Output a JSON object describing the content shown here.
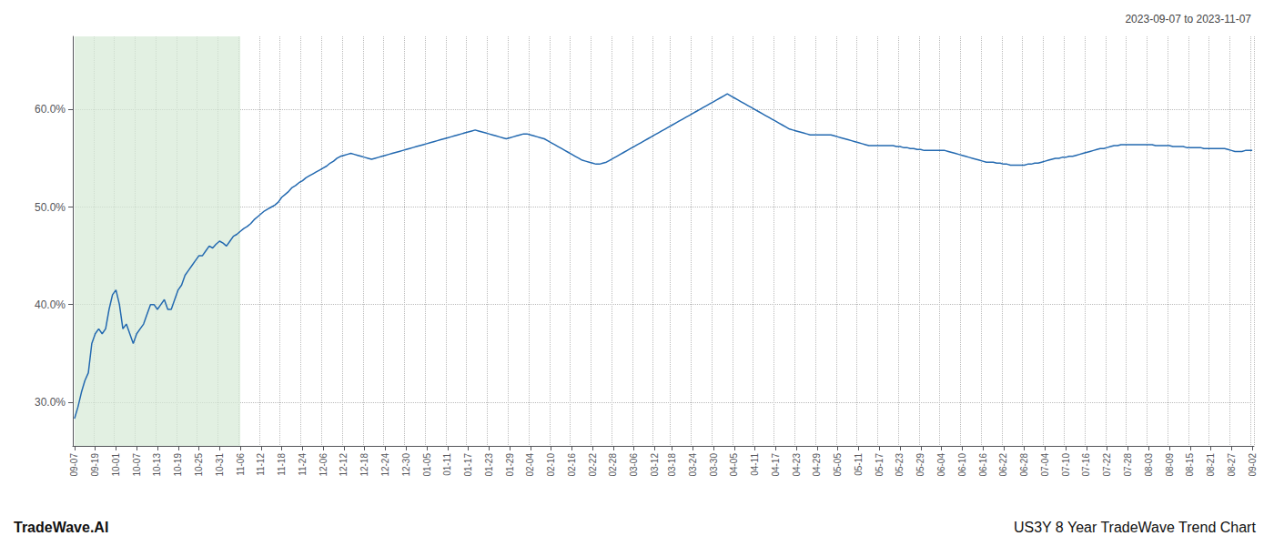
{
  "chart_data": {
    "type": "line",
    "title": "US3Y 8 Year TradeWave Trend Chart",
    "subtitle": "2023-09-07 to 2023-11-07",
    "annotations": [
      "TradeWave.AI"
    ],
    "color": "#2369b0",
    "grid": true,
    "highlight": {
      "from": "09-07",
      "to": "11-06",
      "color": "#d6ead6"
    },
    "ylim": [
      0.255,
      0.675
    ],
    "yticks": [
      {
        "value": 0.3,
        "label": "30.0%"
      },
      {
        "value": 0.4,
        "label": "40.0%"
      },
      {
        "value": 0.5,
        "label": "50.0%"
      },
      {
        "value": 0.6,
        "label": "60.0%"
      }
    ],
    "categories": [
      "09-07",
      null,
      null,
      null,
      null,
      null,
      "09-19",
      null,
      null,
      null,
      null,
      null,
      "10-01",
      null,
      null,
      null,
      null,
      null,
      "10-07",
      null,
      null,
      null,
      null,
      null,
      "10-13",
      null,
      null,
      null,
      null,
      null,
      "10-19",
      null,
      null,
      null,
      null,
      null,
      "10-25",
      null,
      null,
      null,
      null,
      null,
      "10-31",
      null,
      null,
      null,
      null,
      null,
      "11-06",
      null,
      null,
      null,
      null,
      null,
      "11-12",
      null,
      null,
      null,
      null,
      null,
      "11-18",
      null,
      null,
      null,
      null,
      null,
      "11-24",
      null,
      null,
      null,
      null,
      null,
      "12-06",
      null,
      null,
      null,
      null,
      null,
      "12-12",
      null,
      null,
      null,
      null,
      null,
      "12-18",
      null,
      null,
      null,
      null,
      null,
      "12-24",
      null,
      null,
      null,
      null,
      null,
      "12-30",
      null,
      null,
      null,
      null,
      null,
      "01-05",
      null,
      null,
      null,
      null,
      null,
      "01-11",
      null,
      null,
      null,
      null,
      null,
      "01-17",
      null,
      null,
      null,
      null,
      null,
      "01-23",
      null,
      null,
      null,
      null,
      null,
      "01-29",
      null,
      null,
      null,
      null,
      null,
      "02-04",
      null,
      null,
      null,
      null,
      null,
      "02-10",
      null,
      null,
      null,
      null,
      null,
      "02-16",
      null,
      null,
      null,
      null,
      null,
      "02-22",
      null,
      null,
      null,
      null,
      null,
      "02-28",
      null,
      null,
      null,
      null,
      null,
      "03-06",
      null,
      null,
      null,
      null,
      null,
      "03-12",
      null,
      null,
      null,
      null,
      "03-18",
      null,
      null,
      null,
      null,
      null,
      "03-24",
      null,
      null,
      null,
      null,
      null,
      "03-30",
      null,
      null,
      null,
      null,
      null,
      "04-05",
      null,
      null,
      null,
      null,
      null,
      "04-11",
      null,
      null,
      null,
      null,
      null,
      "04-17",
      null,
      null,
      null,
      null,
      null,
      "04-23",
      null,
      null,
      null,
      null,
      null,
      "04-29",
      null,
      null,
      null,
      null,
      null,
      "05-05",
      null,
      null,
      null,
      null,
      null,
      "05-11",
      null,
      null,
      null,
      null,
      null,
      "05-17",
      null,
      null,
      null,
      null,
      null,
      "05-23",
      null,
      null,
      null,
      null,
      null,
      "05-29",
      null,
      null,
      null,
      null,
      null,
      "06-04",
      null,
      null,
      null,
      null,
      null,
      "06-10",
      null,
      null,
      null,
      null,
      null,
      "06-16",
      null,
      null,
      null,
      null,
      null,
      "06-22",
      null,
      null,
      null,
      null,
      null,
      "06-28",
      null,
      null,
      null,
      null,
      null,
      "07-04",
      null,
      null,
      null,
      null,
      null,
      "07-10",
      null,
      null,
      null,
      null,
      null,
      "07-16",
      null,
      null,
      null,
      null,
      null,
      "07-22",
      null,
      null,
      null,
      null,
      null,
      "07-28",
      null,
      null,
      null,
      null,
      null,
      "08-03",
      null,
      null,
      null,
      null,
      null,
      "08-09",
      null,
      null,
      null,
      null,
      null,
      "08-15",
      null,
      null,
      null,
      null,
      null,
      "08-21",
      null,
      null,
      null,
      null,
      null,
      "08-27",
      null,
      null,
      null,
      null,
      null,
      "09-02"
    ],
    "values": [
      0.283,
      0.295,
      0.31,
      0.322,
      0.33,
      0.36,
      0.37,
      0.375,
      0.37,
      0.375,
      0.395,
      0.41,
      0.415,
      0.4,
      0.375,
      0.38,
      0.37,
      0.36,
      0.37,
      0.375,
      0.38,
      0.39,
      0.4,
      0.4,
      0.395,
      0.4,
      0.405,
      0.395,
      0.395,
      0.405,
      0.415,
      0.42,
      0.43,
      0.435,
      0.44,
      0.445,
      0.45,
      0.45,
      0.455,
      0.46,
      0.458,
      0.462,
      0.465,
      0.463,
      0.46,
      0.465,
      0.47,
      0.472,
      0.475,
      0.478,
      0.48,
      0.483,
      0.487,
      0.49,
      0.493,
      0.496,
      0.498,
      0.5,
      0.502,
      0.505,
      0.51,
      0.513,
      0.516,
      0.52,
      0.522,
      0.525,
      0.527,
      0.53,
      0.532,
      0.534,
      0.536,
      0.538,
      0.54,
      0.542,
      0.545,
      0.547,
      0.55,
      0.552,
      0.553,
      0.554,
      0.555,
      0.554,
      0.553,
      0.552,
      0.551,
      0.55,
      0.549,
      0.55,
      0.551,
      0.552,
      0.553,
      0.554,
      0.555,
      0.556,
      0.557,
      0.558,
      0.559,
      0.56,
      0.561,
      0.562,
      0.563,
      0.564,
      0.565,
      0.566,
      0.567,
      0.568,
      0.569,
      0.57,
      0.571,
      0.572,
      0.573,
      0.574,
      0.575,
      0.576,
      0.577,
      0.578,
      0.579,
      0.578,
      0.577,
      0.576,
      0.575,
      0.574,
      0.573,
      0.572,
      0.571,
      0.57,
      0.571,
      0.572,
      0.573,
      0.574,
      0.575,
      0.575,
      0.574,
      0.573,
      0.572,
      0.571,
      0.57,
      0.568,
      0.566,
      0.564,
      0.562,
      0.56,
      0.558,
      0.556,
      0.554,
      0.552,
      0.55,
      0.548,
      0.547,
      0.546,
      0.545,
      0.544,
      0.544,
      0.545,
      0.546,
      0.548,
      0.55,
      0.552,
      0.554,
      0.556,
      0.558,
      0.56,
      0.562,
      0.564,
      0.566,
      0.568,
      0.57,
      0.572,
      0.574,
      0.576,
      0.578,
      0.58,
      0.582,
      0.584,
      0.586,
      0.588,
      0.59,
      0.592,
      0.594,
      0.596,
      0.598,
      0.6,
      0.602,
      0.604,
      0.606,
      0.608,
      0.61,
      0.612,
      0.614,
      0.616,
      0.614,
      0.612,
      0.61,
      0.608,
      0.606,
      0.604,
      0.602,
      0.6,
      0.598,
      0.596,
      0.594,
      0.592,
      0.59,
      0.588,
      0.586,
      0.584,
      0.582,
      0.58,
      0.579,
      0.578,
      0.577,
      0.576,
      0.575,
      0.574,
      0.574,
      0.574,
      0.574,
      0.574,
      0.574,
      0.574,
      0.573,
      0.572,
      0.571,
      0.57,
      0.569,
      0.568,
      0.567,
      0.566,
      0.565,
      0.564,
      0.563,
      0.563,
      0.563,
      0.563,
      0.563,
      0.563,
      0.563,
      0.563,
      0.562,
      0.562,
      0.561,
      0.561,
      0.56,
      0.56,
      0.559,
      0.559,
      0.558,
      0.558,
      0.558,
      0.558,
      0.558,
      0.558,
      0.558,
      0.557,
      0.556,
      0.555,
      0.554,
      0.553,
      0.552,
      0.551,
      0.55,
      0.549,
      0.548,
      0.547,
      0.546,
      0.546,
      0.546,
      0.545,
      0.545,
      0.544,
      0.544,
      0.543,
      0.543,
      0.543,
      0.543,
      0.543,
      0.544,
      0.544,
      0.545,
      0.545,
      0.546,
      0.547,
      0.548,
      0.549,
      0.55,
      0.55,
      0.551,
      0.551,
      0.552,
      0.552,
      0.553,
      0.554,
      0.555,
      0.556,
      0.557,
      0.558,
      0.559,
      0.56,
      0.56,
      0.561,
      0.562,
      0.563,
      0.563,
      0.564,
      0.564,
      0.564,
      0.564,
      0.564,
      0.564,
      0.564,
      0.564,
      0.564,
      0.564,
      0.563,
      0.563,
      0.563,
      0.563,
      0.563,
      0.562,
      0.562,
      0.562,
      0.562,
      0.561,
      0.561,
      0.561,
      0.561,
      0.561,
      0.56,
      0.56,
      0.56,
      0.56,
      0.56,
      0.56,
      0.56,
      0.559,
      0.558,
      0.557,
      0.557,
      0.557,
      0.558,
      0.558,
      0.558
    ]
  }
}
